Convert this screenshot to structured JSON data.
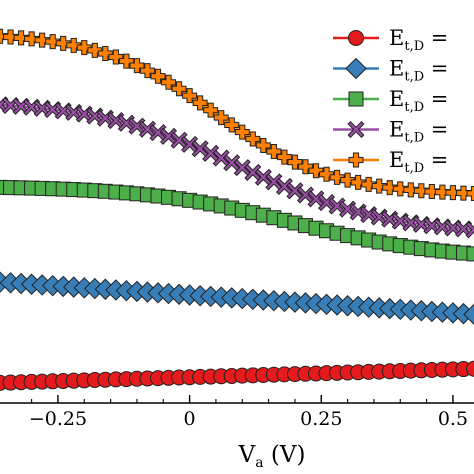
{
  "chart_data": {
    "type": "line",
    "xlabel": {
      "main": "V",
      "sub": "a",
      "unit": " (V)"
    },
    "ylabel": "",
    "xlim": [
      -0.36,
      0.54
    ],
    "ylim": [
      0,
      1
    ],
    "xticks": [
      -0.25,
      0,
      0.25,
      0.5
    ],
    "xtick_labels": [
      "−0.25",
      "0",
      "0.25",
      "0.5"
    ],
    "grid": false,
    "legend_position": "top-right",
    "legend_text": {
      "main": "E",
      "sub": "t,D",
      "suffix": " ="
    },
    "x": [
      -0.36,
      -0.34,
      -0.32,
      -0.3,
      -0.28,
      -0.26,
      -0.24,
      -0.22,
      -0.2,
      -0.18,
      -0.16,
      -0.14,
      -0.12,
      -0.1,
      -0.08,
      -0.06,
      -0.04,
      -0.02,
      0.0,
      0.02,
      0.04,
      0.06,
      0.08,
      0.1,
      0.12,
      0.14,
      0.16,
      0.18,
      0.2,
      0.22,
      0.24,
      0.26,
      0.28,
      0.3,
      0.32,
      0.34,
      0.36,
      0.38,
      0.4,
      0.42,
      0.44,
      0.46,
      0.48,
      0.5,
      0.52,
      0.54
    ],
    "series": [
      {
        "color": "#e41a1c",
        "marker": "circle",
        "start": 0.05,
        "end": 0.085,
        "shape": "linear"
      },
      {
        "color": "#377eb8",
        "marker": "diamond",
        "start": 0.3,
        "end": 0.22,
        "shape": "linear"
      },
      {
        "color": "#4daf4a",
        "marker": "square",
        "start": 0.535,
        "end": 0.37,
        "shape": "sigmoid",
        "mid": 0.2,
        "width": 0.14
      },
      {
        "color": "#984ea3",
        "marker": "cross",
        "start": 0.74,
        "end": 0.43,
        "shape": "sigmoid",
        "mid": 0.1,
        "width": 0.14
      },
      {
        "color": "#ff7f00",
        "marker": "plus",
        "start": 0.91,
        "end": 0.52,
        "shape": "sigmoid",
        "mid": 0.05,
        "width": 0.11
      }
    ]
  }
}
